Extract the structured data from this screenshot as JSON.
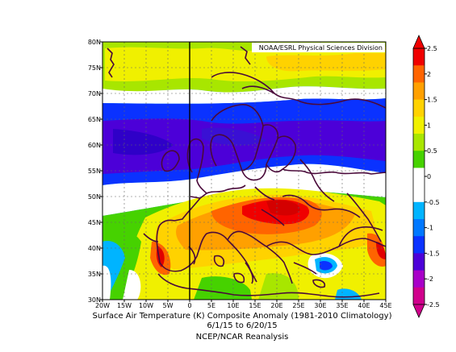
{
  "chart_data": {
    "type": "heatmap",
    "title": "Surface Air Temperature (K) Composite Anomaly (1981-2010 Climatology)",
    "date_range": "6/1/15   to 6/20/15",
    "source": "NCEP/NCAR Reanalysis",
    "credit": "NOAA/ESRL Physical Sciences Division",
    "x_ticks": [
      "20W",
      "15W",
      "10W",
      "5W",
      "0",
      "5E",
      "10E",
      "15E",
      "20E",
      "25E",
      "30E",
      "35E",
      "40E",
      "45E"
    ],
    "y_ticks": [
      "80N",
      "75N",
      "70N",
      "65N",
      "60N",
      "55N",
      "50N",
      "45N",
      "40N",
      "35N",
      "30N"
    ],
    "xlim": [
      -20,
      45
    ],
    "ylim": [
      30,
      80
    ],
    "colorbar": {
      "ticks": [
        "2.5",
        "2",
        "1.5",
        "1",
        "0.5",
        "0",
        "-0.5",
        "-1",
        "-1.5",
        "-2",
        "-2.5"
      ],
      "range": [
        -2.5,
        2.5
      ],
      "colors": [
        "#d0008c",
        "#a800c8",
        "#4c00d8",
        "#0a32ff",
        "#0078ff",
        "#00b4ff",
        "#ffffff",
        "#ffffff",
        "#46d200",
        "#a8e600",
        "#f0f000",
        "#ffd200",
        "#ffa000",
        "#ff6400",
        "#f00000"
      ]
    },
    "reference_line_lon": 0
  }
}
